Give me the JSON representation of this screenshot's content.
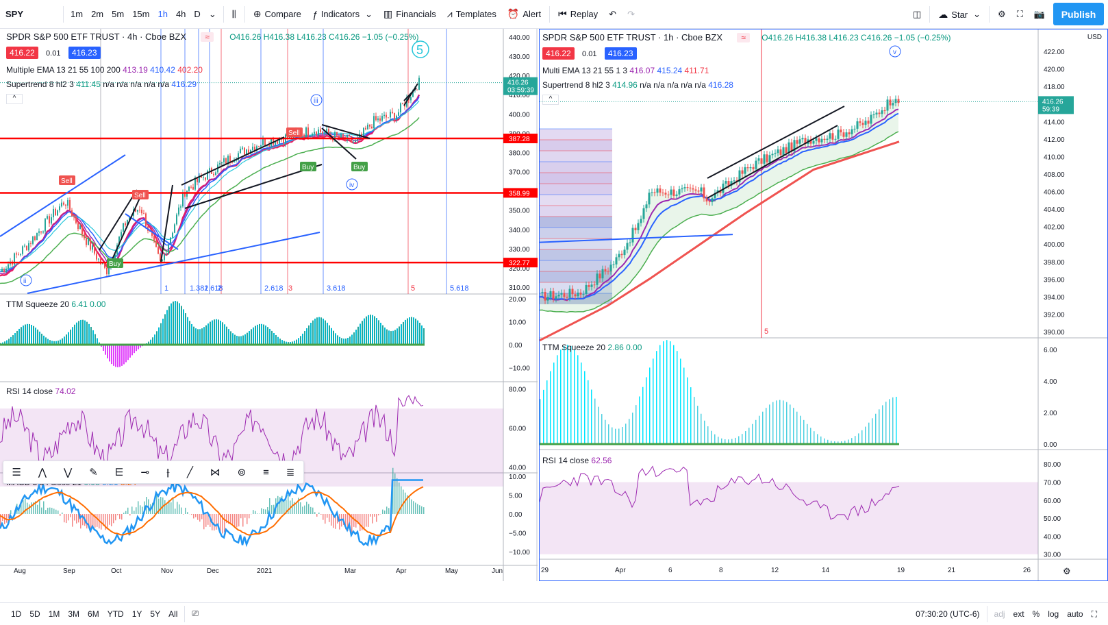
{
  "toolbar": {
    "symbol": "SPY",
    "intervals": [
      "1m",
      "2m",
      "5m",
      "15m",
      "1h",
      "4h",
      "D"
    ],
    "active_interval": "1h",
    "compare": "Compare",
    "indicators": "Indicators",
    "financials": "Financials",
    "templates": "Templates",
    "alert": "Alert",
    "replay": "Replay",
    "star": "Star",
    "publish": "Publish"
  },
  "left": {
    "title": "SPDR S&P 500 ETF TRUST · 4h · Cboe BZX",
    "ohlc": "O416.26 H416.38 L416.23 C416.26 −1.05 (−0.25%)",
    "bid": "416.22",
    "spread": "0.01",
    "ask": "416.23",
    "ema": {
      "name": "Multiple EMA 13 21 55 100 200",
      "v1": "413.19",
      "v2": "410.42",
      "v3": "402.20"
    },
    "st": {
      "name": "Supertrend 8 hl2 3",
      "v1": "411.45",
      "rest": "n/a n/a n/a n/a n/a",
      "v2": "416.29"
    },
    "price_axis": [
      "440.00",
      "430.00",
      "420.00",
      "410.00",
      "400.00",
      "390.00",
      "380.00",
      "370.00",
      "360.00",
      "350.00",
      "340.00",
      "330.00",
      "320.00",
      "310.00"
    ],
    "price_tag": "416.26",
    "countdown": "03:59:39",
    "levels": [
      {
        "label": "387.28",
        "price": 387.28
      },
      {
        "label": "358.99",
        "price": 358.99
      },
      {
        "label": "322.77",
        "price": 322.77
      }
    ],
    "fib_labels": [
      "1",
      "1.382",
      "1.618",
      "2",
      "2.618",
      "3",
      "3.618",
      "5",
      "5.618"
    ],
    "ttm": {
      "name": "TTM Squeeze 20",
      "v1": "6.41",
      "v2": "0.00",
      "axis": [
        "20.00",
        "10.00",
        "0.00",
        "−10.00"
      ]
    },
    "rsi": {
      "name": "RSI 14 close",
      "v": "74.02",
      "axis": [
        "80.00",
        "60.00",
        "40.00"
      ]
    },
    "macd": {
      "name": "MACD 5 34 close 21",
      "v1": "0.98",
      "v2": "9.21",
      "v3": "8.24",
      "axis": [
        "10.00",
        "5.00",
        "0.00",
        "−5.00",
        "−10.00"
      ]
    },
    "time_axis": [
      "Aug",
      "Sep",
      "Oct",
      "Nov",
      "Dec",
      "2021",
      "Mar",
      "Apr",
      "May",
      "Jun"
    ],
    "annotations": [
      "Sell",
      "Sell",
      "Sell",
      "Buy",
      "Buy",
      "Buy",
      "iii",
      "iv",
      "ii",
      "5"
    ]
  },
  "right": {
    "title": "SPDR S&P 500 ETF TRUST · 1h · Cboe BZX",
    "ohlc": "O416.26 H416.38 L416.23 C416.26 −1.05 (−0.25%)",
    "bid": "416.22",
    "spread": "0.01",
    "ask": "416.23",
    "ema": {
      "name": "Multi EMA 13 21 55 1 3",
      "v1": "416.07",
      "v2": "415.24",
      "v3": "411.71"
    },
    "st": {
      "name": "Supertrend 8 hl2 3",
      "v1": "414.96",
      "rest": "n/a n/a n/a n/a n/a",
      "v2": "416.28"
    },
    "currency": "USD",
    "price_axis": [
      "422.00",
      "420.00",
      "418.00",
      "416.00",
      "414.00",
      "412.00",
      "410.00",
      "408.00",
      "406.00",
      "404.00",
      "402.00",
      "400.00",
      "398.00",
      "396.00",
      "394.00",
      "392.00",
      "390.00"
    ],
    "price_tag": "416.26",
    "countdown": "59:39",
    "ttm": {
      "name": "TTM Squeeze 20",
      "v1": "2.86",
      "v2": "0.00",
      "axis": [
        "6.00",
        "4.00",
        "2.00",
        "0.00"
      ]
    },
    "rsi": {
      "name": "RSI 14 close",
      "v": "62.56",
      "axis": [
        "80.00",
        "70.00",
        "60.00",
        "50.00",
        "40.00",
        "30.00"
      ]
    },
    "time_axis": [
      "29",
      "Apr",
      "6",
      "8",
      "12",
      "14",
      "19",
      "21",
      "26"
    ],
    "marker": "5"
  },
  "bottom": {
    "ranges": [
      "1D",
      "5D",
      "1M",
      "3M",
      "6M",
      "YTD",
      "1Y",
      "5Y",
      "All"
    ],
    "clock": "07:30:20 (UTC-6)",
    "adj": "adj",
    "ext": "ext",
    "pct": "%",
    "log": "log",
    "auto": "auto"
  },
  "colors": {
    "accent": "#2962ff",
    "publish": "#2196f3",
    "bid": "#f23645",
    "ask": "#2962ff",
    "level": "#ff0000"
  }
}
